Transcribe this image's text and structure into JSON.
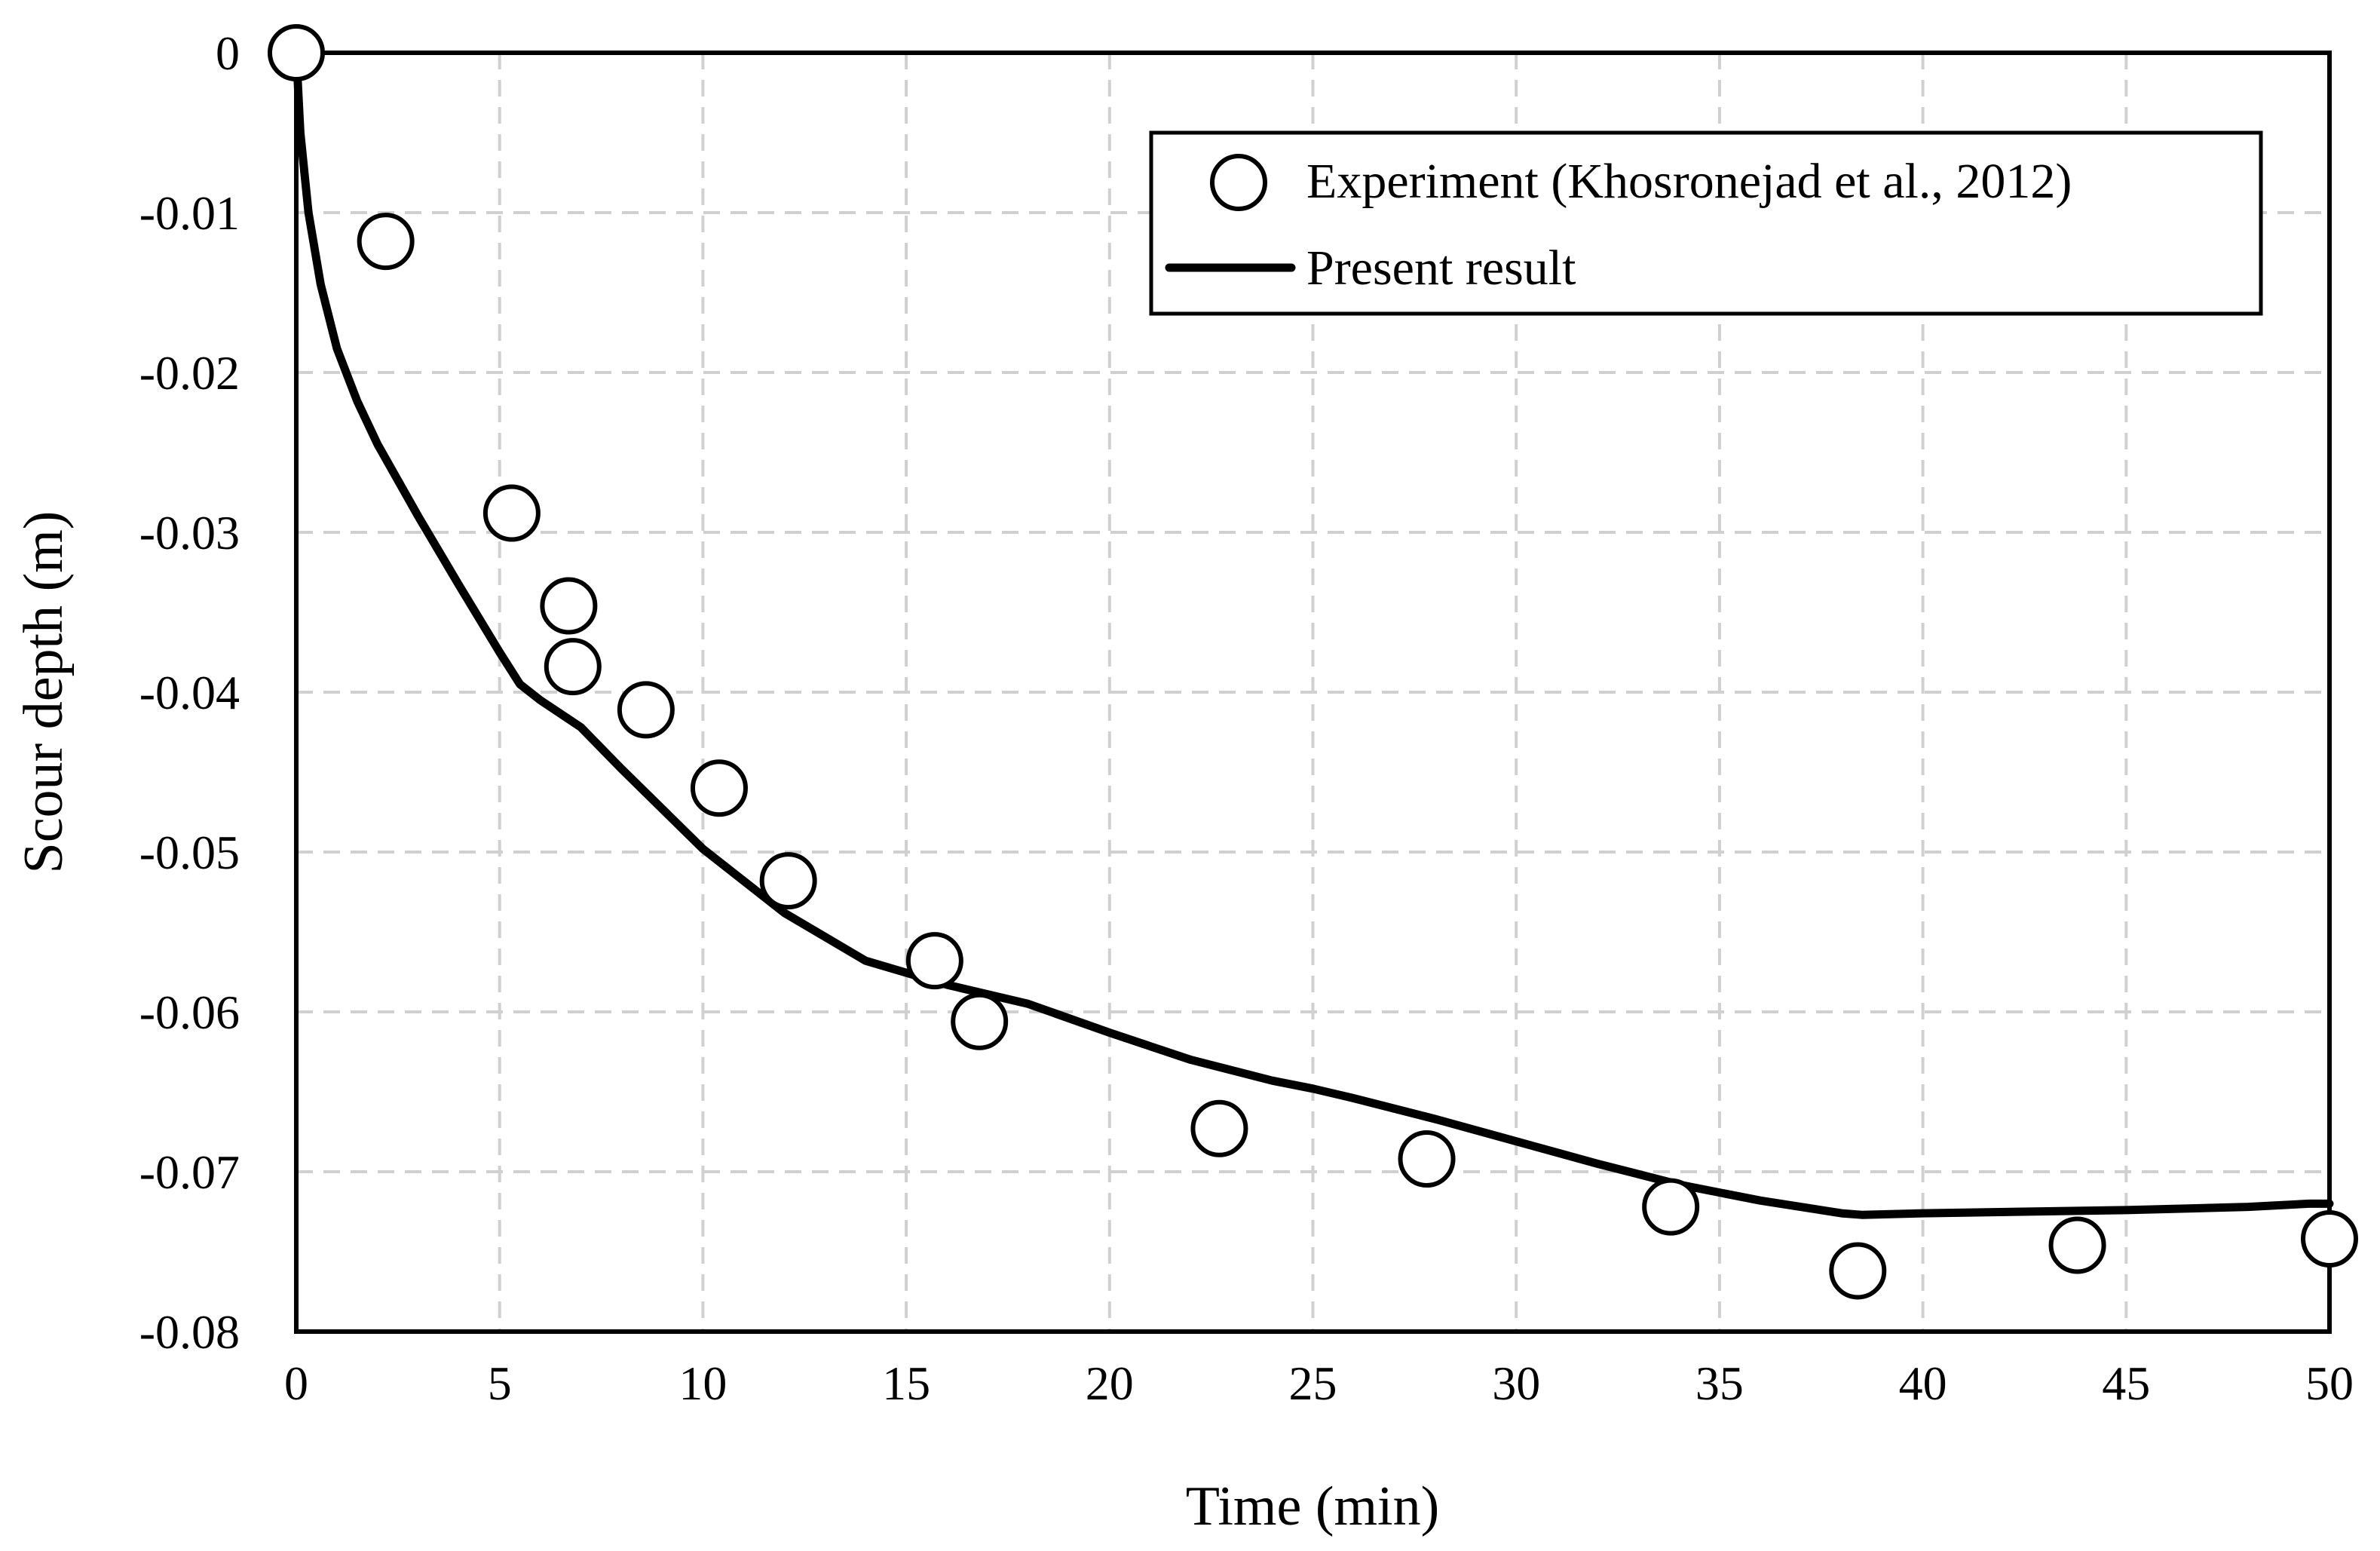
{
  "chart_data": {
    "type": "scatter",
    "title": "",
    "xlabel": "Time (min)",
    "ylabel": "Scour depth (m)",
    "xlim": [
      0,
      50
    ],
    "ylim": [
      -0.08,
      0
    ],
    "grid": true,
    "legend_position": "top-right",
    "x_ticks": [
      0,
      5,
      10,
      15,
      20,
      25,
      30,
      35,
      40,
      45,
      50
    ],
    "x_tick_labels": [
      "0",
      "5",
      "10",
      "15",
      "20",
      "25",
      "30",
      "35",
      "40",
      "45",
      "50"
    ],
    "y_ticks": [
      0,
      -0.01,
      -0.02,
      -0.03,
      -0.04,
      -0.05,
      -0.06,
      -0.07,
      -0.08
    ],
    "y_tick_labels": [
      "0",
      "-0.01",
      "-0.02",
      "-0.03",
      "-0.04",
      "-0.05",
      "-0.06",
      "-0.07",
      "-0.08"
    ],
    "series": [
      {
        "name": "Experiment (Khosronejad et al., 2012)",
        "type": "scatter",
        "marker": "open-circle",
        "x": [
          0,
          2.2,
          5.3,
          6.7,
          6.8,
          8.6,
          10.4,
          12.1,
          15.7,
          16.8,
          22.7,
          27.8,
          33.8,
          38.4,
          43.8,
          50
        ],
        "y": [
          0,
          -0.0118,
          -0.0288,
          -0.0346,
          -0.0384,
          -0.0411,
          -0.046,
          -0.0518,
          -0.0568,
          -0.0606,
          -0.0673,
          -0.0692,
          -0.0722,
          -0.0762,
          -0.0746,
          -0.0742
        ]
      },
      {
        "name": "Present result",
        "type": "line",
        "x": [
          0,
          0.1,
          0.3,
          0.6,
          1,
          1.5,
          2,
          3,
          4,
          5,
          5.5,
          6,
          7,
          8,
          10,
          12,
          14,
          16,
          18,
          20,
          22,
          24,
          25,
          26,
          28,
          30,
          32,
          34,
          36,
          38,
          38.5,
          40,
          45,
          48,
          49.5,
          50
        ],
        "y": [
          0,
          -0.005,
          -0.01,
          -0.0145,
          -0.0185,
          -0.0218,
          -0.0245,
          -0.029,
          -0.0333,
          -0.0375,
          -0.0395,
          -0.0405,
          -0.0422,
          -0.0448,
          -0.0498,
          -0.0538,
          -0.0568,
          -0.0583,
          -0.0595,
          -0.0613,
          -0.063,
          -0.0643,
          -0.0648,
          -0.0654,
          -0.0667,
          -0.0681,
          -0.0695,
          -0.0708,
          -0.0718,
          -0.0726,
          -0.0727,
          -0.0726,
          -0.0724,
          -0.0722,
          -0.072,
          -0.072
        ]
      }
    ]
  },
  "legend": {
    "experiment_label": "Experiment (Khosronejad et al., 2012)",
    "present_label": "Present result"
  }
}
